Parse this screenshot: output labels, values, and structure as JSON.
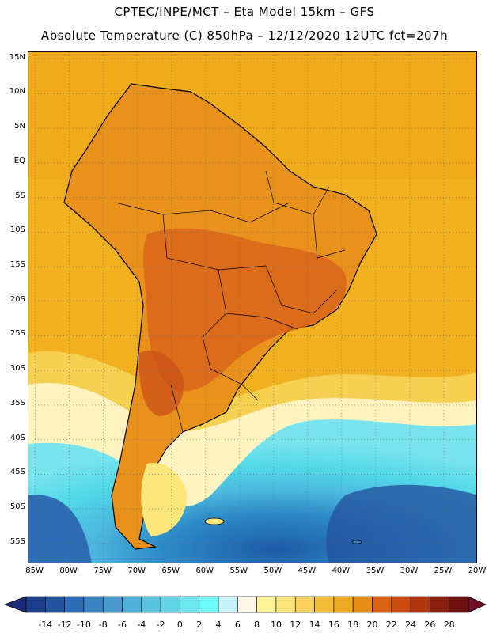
{
  "header": {
    "line1": "CPTEC/INPE/MCT –   Eta Model 15km – GFS",
    "line2": "Absolute Temperature (C) 850hPa – 12/12/2020 12UTC fct=207h"
  },
  "map": {
    "lat_ticks": [
      "15N",
      "10N",
      "5N",
      "EQ",
      "5S",
      "10S",
      "15S",
      "20S",
      "25S",
      "30S",
      "35S",
      "40S",
      "45S",
      "50S",
      "55S"
    ],
    "lon_ticks": [
      "85W",
      "80W",
      "75W",
      "70W",
      "65W",
      "60W",
      "55W",
      "50W",
      "45W",
      "40W",
      "35W",
      "30W",
      "25W",
      "20W"
    ],
    "lat_range": [
      16,
      -58
    ],
    "lon_range": [
      -86,
      -20
    ],
    "ocean_color": "#f0b020",
    "land_color": "#e8921c",
    "warm_core_color": "#d9641a",
    "cold_colors": [
      "#fff0c0",
      "#50d8e8",
      "#4cb8de",
      "#2e8cc8",
      "#1c5aa8"
    ]
  },
  "legend": {
    "labels": [
      "-14",
      "-12",
      "-10",
      "-8",
      "-6",
      "-4",
      "-2",
      "0",
      "2",
      "4",
      "6",
      "8",
      "10",
      "12",
      "14",
      "16",
      "18",
      "20",
      "22",
      "24",
      "26",
      "28"
    ],
    "colors": [
      "#1c3c8c",
      "#2454a0",
      "#2e6cb4",
      "#3a84c4",
      "#4a9ad0",
      "#4fb0d8",
      "#5ac4de",
      "#62d6e6",
      "#6ee8ee",
      "#70fbfb",
      "#c8f4fa",
      "#fff8e8",
      "#fff49a",
      "#fde67a",
      "#f8d25a",
      "#f2be3a",
      "#ecaa20",
      "#e88c12",
      "#dc6410",
      "#cc4a10",
      "#b03410",
      "#8c2010",
      "#6e1010"
    ],
    "arrow_left_color": "#1c2c78",
    "arrow_right_color": "#6e0e22"
  }
}
